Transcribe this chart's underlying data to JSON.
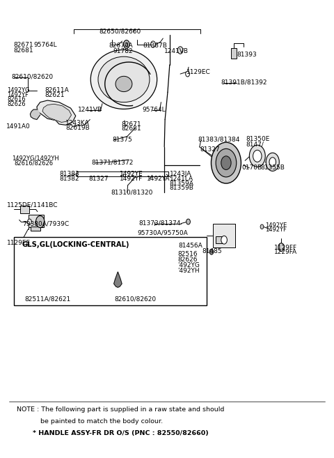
{
  "bg_color": "#ffffff",
  "line_color": "#000000",
  "fig_width": 4.8,
  "fig_height": 6.57,
  "dpi": 100,
  "note_line1": "NOTE : The following part is supplied in a raw state and should",
  "note_line2": "be painted to match the body colour.",
  "note_line3": "* HANDLE ASSY-FR DR O/S (PNC : 82550/82660)",
  "inset_title": "GLS,GL(LOCKING-CENTRAL)"
}
